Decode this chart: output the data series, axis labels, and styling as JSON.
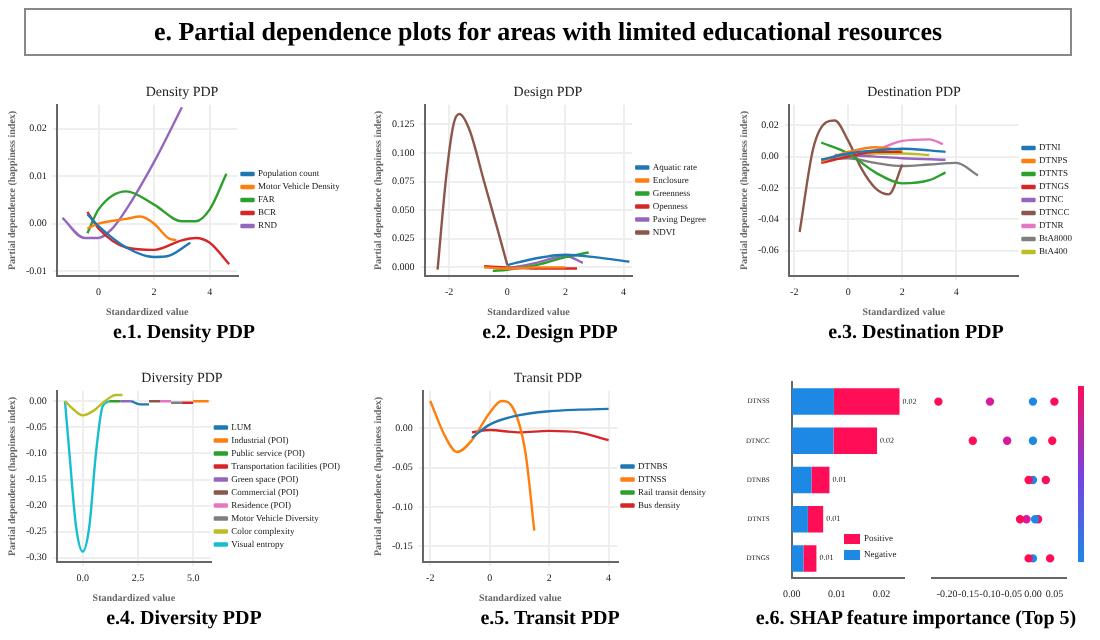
{
  "chart_data": [
    {
      "type": "other",
      "title": "e. Partial dependence plots for areas with limited educational resources"
    },
    {
      "type": "line",
      "title": "Density PDP",
      "xlabel": "Standardized value",
      "ylabel": "Partial dependence (happiness index)",
      "annotations": [
        "e.1. Density PDP"
      ],
      "grid": true,
      "legend": "right",
      "marker": "none",
      "xlim": [
        -1.5,
        5
      ],
      "xticks": [
        {
          "value": 0,
          "label": "0"
        },
        {
          "value": 2,
          "label": "2"
        },
        {
          "value": 4,
          "label": "4"
        }
      ],
      "ylim": [
        -0.011,
        0.025
      ],
      "yticks": [
        {
          "value": -0.01,
          "label": "-0.01"
        },
        {
          "value": 0,
          "label": "0.00"
        },
        {
          "value": 0.01,
          "label": "0.01"
        },
        {
          "value": 0.02,
          "label": "0.02"
        }
      ],
      "series": [
        {
          "name": "Population count",
          "color": "#1f77b4",
          "x": [
            -0.4,
            0,
            1,
            2,
            2.5,
            3.3
          ],
          "values": [
            0.002,
            -0.0005,
            -0.005,
            -0.007,
            -0.0068,
            -0.004
          ]
        },
        {
          "name": "Motor Vehicle Density",
          "color": "#ff7f0e",
          "x": [
            -0.4,
            0,
            1,
            1.5,
            2,
            2.5,
            2.8
          ],
          "values": [
            -0.001,
            0,
            0.001,
            0.0015,
            0,
            -0.003,
            -0.0035
          ]
        },
        {
          "name": "FAR",
          "color": "#2ca02c",
          "x": [
            -0.4,
            0,
            1,
            2,
            3,
            3.5,
            4,
            4.6
          ],
          "values": [
            -0.002,
            0.003,
            0.0068,
            0.004,
            0.0005,
            0.0005,
            0.003,
            0.0105
          ]
        },
        {
          "name": "BCR",
          "color": "#d62728",
          "x": [
            -0.4,
            0,
            1,
            2,
            3,
            3.5,
            4,
            4.7
          ],
          "values": [
            0.0025,
            -0.001,
            -0.005,
            -0.0055,
            -0.0035,
            -0.003,
            -0.004,
            -0.0085
          ]
        },
        {
          "name": "RND",
          "color": "#9467bd",
          "x": [
            -1.3,
            -0.5,
            0,
            0.5,
            1,
            2,
            3
          ],
          "values": [
            0.0012,
            -0.003,
            -0.003,
            -0.001,
            0.003,
            0.013,
            0.0245
          ]
        }
      ]
    },
    {
      "type": "line",
      "title": "Design PDP",
      "xlabel": "Standardized value",
      "ylabel": "Partial dependence (happiness index)",
      "annotations": [
        "e.2. Design PDP"
      ],
      "grid": true,
      "legend": "right",
      "marker": "none",
      "xlim": [
        -2.85,
        4.3
      ],
      "xticks": [
        {
          "value": -2,
          "label": "-2"
        },
        {
          "value": 0,
          "label": "0"
        },
        {
          "value": 2,
          "label": "2"
        },
        {
          "value": 4,
          "label": "4"
        }
      ],
      "ylim": [
        -0.0075,
        0.142
      ],
      "yticks": [
        {
          "value": 0,
          "label": "0.000"
        },
        {
          "value": 0.025,
          "label": "0.025"
        },
        {
          "value": 0.05,
          "label": "0.050"
        },
        {
          "value": 0.075,
          "label": "0.075"
        },
        {
          "value": 0.1,
          "label": "0.100"
        },
        {
          "value": 0.125,
          "label": "0.125"
        }
      ],
      "series": [
        {
          "name": "Aquatic rate",
          "color": "#1f77b4",
          "x": [
            0,
            1,
            2,
            3,
            4.2
          ],
          "values": [
            0.002,
            0.008,
            0.011,
            0.009,
            0.005
          ]
        },
        {
          "name": "Enclosure",
          "color": "#ff7f0e",
          "x": [
            -0.8,
            0,
            1,
            2
          ],
          "values": [
            0,
            -0.001,
            0,
            0
          ]
        },
        {
          "name": "Greenness",
          "color": "#2ca02c",
          "x": [
            -0.5,
            0,
            1,
            2,
            2.8
          ],
          "values": [
            -0.003,
            -0.002,
            0.002,
            0.009,
            0.013
          ]
        },
        {
          "name": "Openness",
          "color": "#d62728",
          "x": [
            -0.8,
            0,
            1,
            2.4
          ],
          "values": [
            0.001,
            0,
            -0.001,
            -0.001
          ]
        },
        {
          "name": "Paving Degree",
          "color": "#9467bd",
          "x": [
            0,
            1,
            2,
            2.6
          ],
          "values": [
            -0.001,
            0.004,
            0.01,
            0.004
          ]
        },
        {
          "name": "NDVI",
          "color": "#8c564b",
          "x": [
            -2.4,
            -2.1,
            -1.85,
            -1.65,
            -1.3,
            -0.8,
            -0.3,
            0
          ],
          "values": [
            -0.002,
            0.08,
            0.125,
            0.134,
            0.12,
            0.075,
            0.03,
            0.002
          ]
        }
      ]
    },
    {
      "type": "line",
      "title": "Destination PDP",
      "xlabel": "Standardized value",
      "ylabel": "Partial dependence (happiness index)",
      "annotations": [
        "e.3. Destination PDP"
      ],
      "grid": true,
      "legend": "right",
      "marker": "none",
      "xlim": [
        -2.2,
        6.3
      ],
      "xticks": [
        {
          "value": -2,
          "label": "-2"
        },
        {
          "value": 0,
          "label": "0"
        },
        {
          "value": 2,
          "label": "2"
        },
        {
          "value": 4,
          "label": "4"
        }
      ],
      "ylim": [
        -0.076,
        0.033
      ],
      "yticks": [
        {
          "value": -0.06,
          "label": "-0.06"
        },
        {
          "value": -0.04,
          "label": "-0.04"
        },
        {
          "value": -0.02,
          "label": "-0.02"
        },
        {
          "value": 0,
          "label": "0.00"
        },
        {
          "value": 0.02,
          "label": "0.02"
        }
      ],
      "series": [
        {
          "name": "DTNI",
          "color": "#1f77b4",
          "x": [
            -1,
            0,
            1,
            2,
            3,
            3.6
          ],
          "values": [
            -0.002,
            0.002,
            0.004,
            0.005,
            0.004,
            0.003
          ]
        },
        {
          "name": "DTNPS",
          "color": "#ff7f0e",
          "x": [
            -1,
            0,
            1,
            2
          ],
          "values": [
            -0.003,
            0.003,
            0.006,
            0.004
          ]
        },
        {
          "name": "DTNTS",
          "color": "#2ca02c",
          "x": [
            -1,
            0,
            1,
            2,
            3,
            3.6
          ],
          "values": [
            0.009,
            0.002,
            -0.01,
            -0.017,
            -0.015,
            -0.01
          ]
        },
        {
          "name": "DTNGS",
          "color": "#d62728",
          "x": [
            -1,
            0,
            1,
            2
          ],
          "values": [
            -0.004,
            0,
            0.003,
            0.003
          ]
        },
        {
          "name": "DTNC",
          "color": "#9467bd",
          "x": [
            -0.5,
            1,
            2,
            3.6
          ],
          "values": [
            0.001,
            0,
            -0.001,
            -0.002
          ]
        },
        {
          "name": "DTNCC",
          "color": "#8c564b",
          "x": [
            -1.8,
            -1.3,
            -0.8,
            -0.5,
            0,
            0.5,
            1,
            1.5,
            2
          ],
          "values": [
            -0.048,
            0.005,
            0.022,
            0.023,
            0.01,
            -0.008,
            -0.02,
            -0.024,
            -0.005
          ]
        },
        {
          "name": "DTNR",
          "color": "#e377c2",
          "x": [
            0,
            1,
            2,
            3,
            3.5
          ],
          "values": [
            0,
            0.004,
            0.01,
            0.011,
            0.008
          ]
        },
        {
          "name": "BtA8000",
          "color": "#7f7f7f",
          "x": [
            -1,
            0,
            1,
            2,
            3,
            4,
            4.8
          ],
          "values": [
            -0.002,
            -0.001,
            -0.004,
            -0.006,
            -0.005,
            -0.004,
            -0.012
          ]
        },
        {
          "name": "BtA400",
          "color": "#bcbd22",
          "x": [
            -0.5,
            1,
            2,
            3
          ],
          "values": [
            0,
            0.002,
            0.002,
            0.001
          ]
        }
      ]
    },
    {
      "type": "line",
      "title": "Diversity PDP",
      "xlabel": "Standardized value",
      "ylabel": "Partial dependence (happiness index)",
      "annotations": [
        "e.4. Diversity PDP"
      ],
      "grid": true,
      "legend": "right",
      "marker": "none",
      "xlim": [
        -1.17,
        5.8
      ],
      "xticks": [
        {
          "value": 0,
          "label": "0.0"
        },
        {
          "value": 2.5,
          "label": "2.5"
        },
        {
          "value": 5,
          "label": "5.0"
        }
      ],
      "ylim": [
        -0.308,
        0.02
      ],
      "yticks": [
        {
          "value": -0.3,
          "label": "-0.30"
        },
        {
          "value": -0.25,
          "label": "-0.25"
        },
        {
          "value": -0.2,
          "label": "-0.20"
        },
        {
          "value": -0.15,
          "label": "-0.15"
        },
        {
          "value": -0.1,
          "label": "-0.10"
        },
        {
          "value": -0.05,
          "label": "-0.05"
        },
        {
          "value": 0,
          "label": "0.00"
        }
      ],
      "series": [
        {
          "name": "LUM",
          "color": "#1f77b4",
          "x": [
            2.2,
            2.6,
            3
          ],
          "values": [
            0,
            -0.006,
            -0.006
          ]
        },
        {
          "name": "Industrial (POI)",
          "color": "#ff7f0e",
          "x": [
            5,
            5.7
          ],
          "values": [
            0,
            0
          ]
        },
        {
          "name": "Public service (POI)",
          "color": "#2ca02c",
          "x": [
            1.2,
            1.7
          ],
          "values": [
            0,
            0
          ]
        },
        {
          "name": "Transportation facilities (POI)",
          "color": "#d62728",
          "x": [
            4.5,
            5
          ],
          "values": [
            -0.003,
            -0.003
          ]
        },
        {
          "name": "Green space (POI)",
          "color": "#9467bd",
          "x": [
            1.7,
            2.2
          ],
          "values": [
            0,
            0
          ]
        },
        {
          "name": "Commercial (POI)",
          "color": "#8c564b",
          "x": [
            3,
            3.5
          ],
          "values": [
            0,
            0
          ]
        },
        {
          "name": "Residence (POI)",
          "color": "#e377c2",
          "x": [
            3.5,
            4
          ],
          "values": [
            0,
            0
          ]
        },
        {
          "name": "Motor Vehicle Diversity",
          "color": "#7f7f7f",
          "x": [
            4,
            4.5
          ],
          "values": [
            -0.003,
            -0.003
          ]
        },
        {
          "name": "Color complexity",
          "color": "#bcbd22",
          "x": [
            -0.8,
            -0.3,
            0,
            0.5,
            1,
            1.5,
            1.8
          ],
          "values": [
            0,
            -0.02,
            -0.027,
            -0.018,
            0,
            0.012,
            0.012
          ]
        },
        {
          "name": "Visual entropy",
          "color": "#17becf",
          "x": [
            -0.8,
            -0.6,
            -0.3,
            0,
            0.3,
            0.6,
            0.9,
            1.2
          ],
          "values": [
            0,
            -0.1,
            -0.24,
            -0.288,
            -0.24,
            -0.1,
            -0.01,
            0
          ]
        }
      ]
    },
    {
      "type": "line",
      "title": "Transit PDP",
      "xlabel": "Standardized value",
      "ylabel": "Partial dependence (happiness index)",
      "annotations": [
        "e.5. Transit PDP"
      ],
      "grid": true,
      "legend": "right",
      "marker": "none",
      "xlim": [
        -2.25,
        4.3
      ],
      "xticks": [
        {
          "value": -2,
          "label": "-2"
        },
        {
          "value": 0,
          "label": "0"
        },
        {
          "value": 2,
          "label": "2"
        },
        {
          "value": 4,
          "label": "4"
        }
      ],
      "ylim": [
        -0.17,
        0.048
      ],
      "yticks": [
        {
          "value": -0.15,
          "label": "-0.15"
        },
        {
          "value": -0.1,
          "label": "-0.10"
        },
        {
          "value": -0.05,
          "label": "-0.05"
        },
        {
          "value": 0,
          "label": "0.00"
        }
      ],
      "series": [
        {
          "name": "DTNBS",
          "color": "#1f77b4",
          "x": [
            -0.6,
            0,
            1,
            2,
            3,
            4
          ],
          "values": [
            -0.012,
            0.005,
            0.017,
            0.022,
            0.024,
            0.025
          ]
        },
        {
          "name": "DTNSS",
          "color": "#ff7f0e",
          "x": [
            -2,
            -1.5,
            -1.1,
            -0.6,
            0,
            0.4,
            0.8,
            1.2,
            1.5
          ],
          "values": [
            0.035,
            -0.01,
            -0.03,
            -0.015,
            0.02,
            0.035,
            0.025,
            -0.03,
            -0.13
          ]
        },
        {
          "name": "Rail transit density",
          "color": "#2ca02c"
        },
        {
          "name": "Bus density",
          "color": "#d62728",
          "x": [
            -0.6,
            0,
            1,
            2,
            3,
            4
          ],
          "values": [
            -0.005,
            -0.002,
            -0.005,
            -0.003,
            -0.005,
            -0.015
          ]
        }
      ]
    },
    {
      "type": "bar",
      "orientation": "horizontal",
      "stacked": true,
      "annotations": [
        "e.6. SHAP feature importance (Top 5)"
      ],
      "legend": "bottom right",
      "categories": [
        "DTNSS",
        "DTNCC",
        "DTNBS",
        "DTNTS",
        "DTNGS"
      ],
      "xlim": [
        0,
        0.025
      ],
      "xticks": [
        {
          "value": 0,
          "label": "0.00"
        },
        {
          "value": 0.01,
          "label": "0.01"
        },
        {
          "value": 0.02,
          "label": "0.02"
        }
      ],
      "totals": [
        "0.02",
        "0.02",
        "0.01",
        "0.01",
        "0.01"
      ],
      "series": [
        {
          "name": "Negative",
          "color": "#1e88e5",
          "values": [
            0.0094,
            0.0093,
            0.0044,
            0.0036,
            0.0026
          ]
        },
        {
          "name": "Positive",
          "color": "#ff0d57",
          "values": [
            0.0146,
            0.0097,
            0.004,
            0.0034,
            0.0029
          ]
        }
      ]
    },
    {
      "type": "scatter",
      "orientation": "horizontal",
      "categories": [
        null,
        null,
        null,
        null,
        null
      ],
      "legend": false,
      "xlim": [
        -0.235,
        0.077
      ],
      "xticks": [
        {
          "value": -0.2,
          "label": "-0.20"
        },
        {
          "value": -0.15,
          "label": "-0.15"
        },
        {
          "value": -0.1,
          "label": "-0.10"
        },
        {
          "value": -0.05,
          "label": "-0.05"
        },
        {
          "value": 0,
          "label": "0.00"
        },
        {
          "value": 0.05,
          "label": "0.05"
        }
      ],
      "series": [
        {
          "color": "#ff0d57",
          "values": [
            -0.22,
            -0.14,
            -0.01,
            -0.03,
            -0.01
          ]
        },
        {
          "color": "#d81b9c",
          "values": [
            -0.1,
            -0.06,
            null,
            -0.015,
            null
          ]
        },
        {
          "color": "#1e88e5",
          "values": [
            0,
            0,
            0,
            0.005,
            0
          ]
        },
        {
          "color": "#ff0d57",
          "values": [
            0.05,
            0.045,
            0.03,
            0.012,
            0.04
          ]
        }
      ]
    }
  ]
}
